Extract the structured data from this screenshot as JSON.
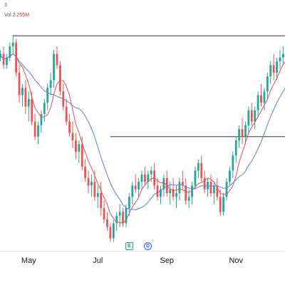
{
  "header": {
    "top_label": "3",
    "vol_prefix": "Vol",
    "vol_value": "2.255M"
  },
  "badges": {
    "earnings": "E",
    "dividend": "D"
  },
  "colors": {
    "up": "#26a69a",
    "down": "#ef5350",
    "ma_fast": "#ec4a57",
    "ma_slow": "#5b7de6",
    "level_line": "#131722"
  },
  "chart_data": {
    "type": "candlestick",
    "title": "",
    "xlabel": "",
    "ylabel": "",
    "x_ticks": [
      {
        "label": "May",
        "index": 10
      },
      {
        "label": "Jul",
        "index": 32
      },
      {
        "label": "Sep",
        "index": 54
      },
      {
        "label": "Nov",
        "index": 76
      }
    ],
    "ylim": [
      35,
      95
    ],
    "level_lines": [
      {
        "value": 90.8,
        "from_index": 5,
        "to_index": 92
      },
      {
        "value": 64.0,
        "from_index": 36,
        "to_index": 92
      }
    ],
    "candles": [
      [
        86,
        88,
        83,
        85
      ],
      [
        85,
        87,
        84,
        86
      ],
      [
        86,
        88,
        82,
        83
      ],
      [
        83,
        86,
        82,
        85
      ],
      [
        85,
        89,
        84,
        88
      ],
      [
        88,
        91,
        86,
        89
      ],
      [
        89,
        90,
        80,
        81
      ],
      [
        81,
        83,
        73,
        75
      ],
      [
        75,
        78,
        72,
        77
      ],
      [
        77,
        79,
        70,
        72
      ],
      [
        72,
        76,
        68,
        74
      ],
      [
        74,
        76,
        67,
        68
      ],
      [
        68,
        70,
        63,
        64
      ],
      [
        64,
        68,
        62,
        67
      ],
      [
        67,
        71,
        65,
        70
      ],
      [
        70,
        74,
        68,
        73
      ],
      [
        73,
        78,
        71,
        77
      ],
      [
        77,
        81,
        75,
        79
      ],
      [
        79,
        87,
        77,
        86
      ],
      [
        86,
        88,
        82,
        83
      ],
      [
        83,
        84,
        75,
        76
      ],
      [
        76,
        78,
        71,
        72
      ],
      [
        72,
        74,
        67,
        68
      ],
      [
        68,
        70,
        64,
        65
      ],
      [
        65,
        68,
        61,
        63
      ],
      [
        63,
        65,
        58,
        60
      ],
      [
        60,
        63,
        57,
        62
      ],
      [
        62,
        64,
        55,
        56
      ],
      [
        56,
        58,
        52,
        53
      ],
      [
        53,
        55,
        49,
        51
      ],
      [
        51,
        54,
        48,
        52
      ],
      [
        52,
        55,
        47,
        48
      ],
      [
        48,
        51,
        45,
        49
      ],
      [
        49,
        52,
        43,
        45
      ],
      [
        45,
        47,
        41,
        42
      ],
      [
        42,
        44,
        39,
        40
      ],
      [
        40,
        41,
        36,
        37
      ],
      [
        37,
        42,
        36,
        41
      ],
      [
        41,
        44,
        39,
        43
      ],
      [
        43,
        46,
        40,
        44
      ],
      [
        44,
        45,
        40,
        41
      ],
      [
        41,
        46,
        40,
        45
      ],
      [
        45,
        49,
        43,
        48
      ],
      [
        48,
        52,
        46,
        51
      ],
      [
        51,
        54,
        49,
        50
      ],
      [
        50,
        53,
        48,
        52
      ],
      [
        52,
        55,
        50,
        54
      ],
      [
        54,
        56,
        51,
        52
      ],
      [
        52,
        55,
        50,
        54
      ],
      [
        54,
        56,
        52,
        55
      ],
      [
        55,
        57,
        50,
        51
      ],
      [
        51,
        53,
        47,
        48
      ],
      [
        48,
        51,
        46,
        50
      ],
      [
        50,
        54,
        48,
        53
      ],
      [
        53,
        55,
        48,
        49
      ],
      [
        49,
        52,
        46,
        50
      ],
      [
        50,
        53,
        47,
        48
      ],
      [
        48,
        51,
        45,
        49
      ],
      [
        49,
        53,
        47,
        52
      ],
      [
        52,
        55,
        50,
        51
      ],
      [
        51,
        53,
        46,
        47
      ],
      [
        47,
        50,
        45,
        48
      ],
      [
        48,
        52,
        46,
        51
      ],
      [
        51,
        56,
        50,
        55
      ],
      [
        55,
        58,
        53,
        57
      ],
      [
        57,
        59,
        52,
        53
      ],
      [
        53,
        55,
        49,
        50
      ],
      [
        50,
        53,
        48,
        52
      ],
      [
        52,
        54,
        48,
        49
      ],
      [
        49,
        52,
        46,
        51
      ],
      [
        51,
        53,
        47,
        48
      ],
      [
        48,
        50,
        43,
        44
      ],
      [
        44,
        49,
        43,
        48
      ],
      [
        48,
        53,
        47,
        52
      ],
      [
        52,
        56,
        51,
        55
      ],
      [
        55,
        60,
        53,
        59
      ],
      [
        59,
        64,
        57,
        63
      ],
      [
        63,
        67,
        61,
        66
      ],
      [
        66,
        69,
        62,
        64
      ],
      [
        64,
        68,
        62,
        67
      ],
      [
        67,
        72,
        65,
        71
      ],
      [
        71,
        73,
        67,
        68
      ],
      [
        68,
        72,
        66,
        71
      ],
      [
        71,
        76,
        69,
        75
      ],
      [
        75,
        78,
        72,
        73
      ],
      [
        73,
        77,
        71,
        76
      ],
      [
        76,
        81,
        74,
        80
      ],
      [
        80,
        84,
        78,
        83
      ],
      [
        83,
        86,
        79,
        81
      ],
      [
        81,
        85,
        79,
        84
      ],
      [
        84,
        87,
        82,
        85
      ],
      [
        85,
        88,
        83,
        86
      ],
      [
        86,
        89,
        84,
        87
      ]
    ]
  }
}
